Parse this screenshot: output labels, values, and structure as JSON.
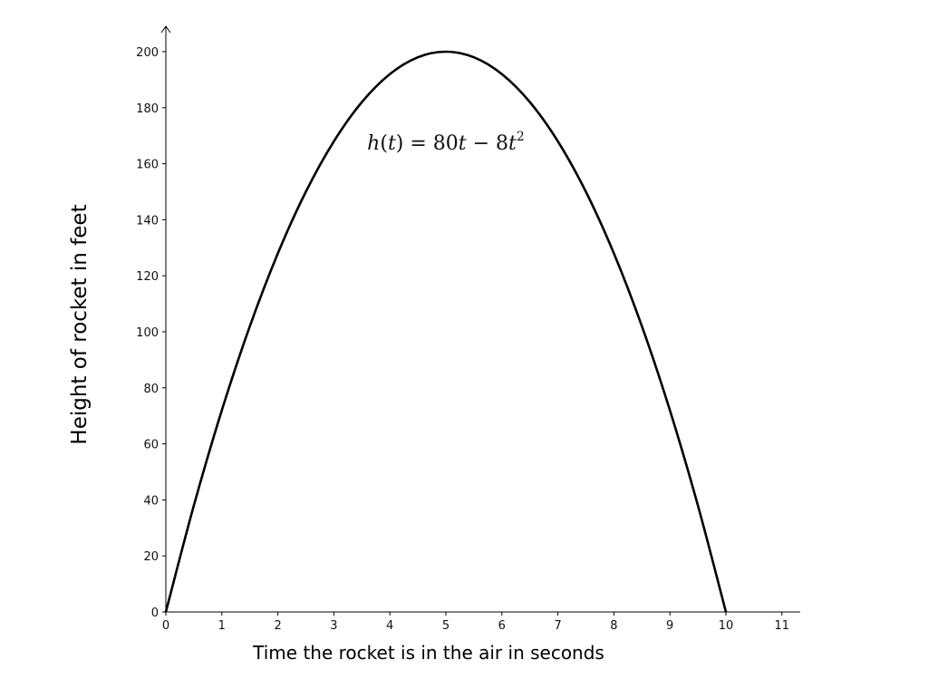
{
  "chart_data": {
    "type": "line",
    "title": "",
    "xlabel": "Time the rocket is in the air in seconds",
    "ylabel": "Height of rocket in feet",
    "xlim": [
      0,
      11
    ],
    "ylim": [
      0,
      200
    ],
    "x_ticks": [
      0,
      1,
      2,
      3,
      4,
      5,
      6,
      7,
      8,
      9,
      10,
      11
    ],
    "y_ticks": [
      0,
      20,
      40,
      60,
      80,
      100,
      120,
      140,
      160,
      180,
      200
    ],
    "grid": false,
    "series": [
      {
        "x": [
          0,
          0.5,
          1,
          1.5,
          2,
          2.5,
          3,
          3.5,
          4,
          4.5,
          5,
          5.5,
          6,
          6.5,
          7,
          7.5,
          8,
          8.5,
          9,
          9.5,
          10
        ],
        "values": [
          0,
          38,
          72,
          102,
          128,
          150,
          168,
          182,
          192,
          198,
          200,
          198,
          192,
          182,
          168,
          150,
          128,
          102,
          72,
          38,
          0
        ],
        "color": "#000000"
      }
    ],
    "annotation": {
      "parts": [
        "h",
        "(",
        "t",
        ") = 80",
        "t",
        " − 8",
        "t",
        "2"
      ],
      "x": 5,
      "y": 165
    }
  }
}
